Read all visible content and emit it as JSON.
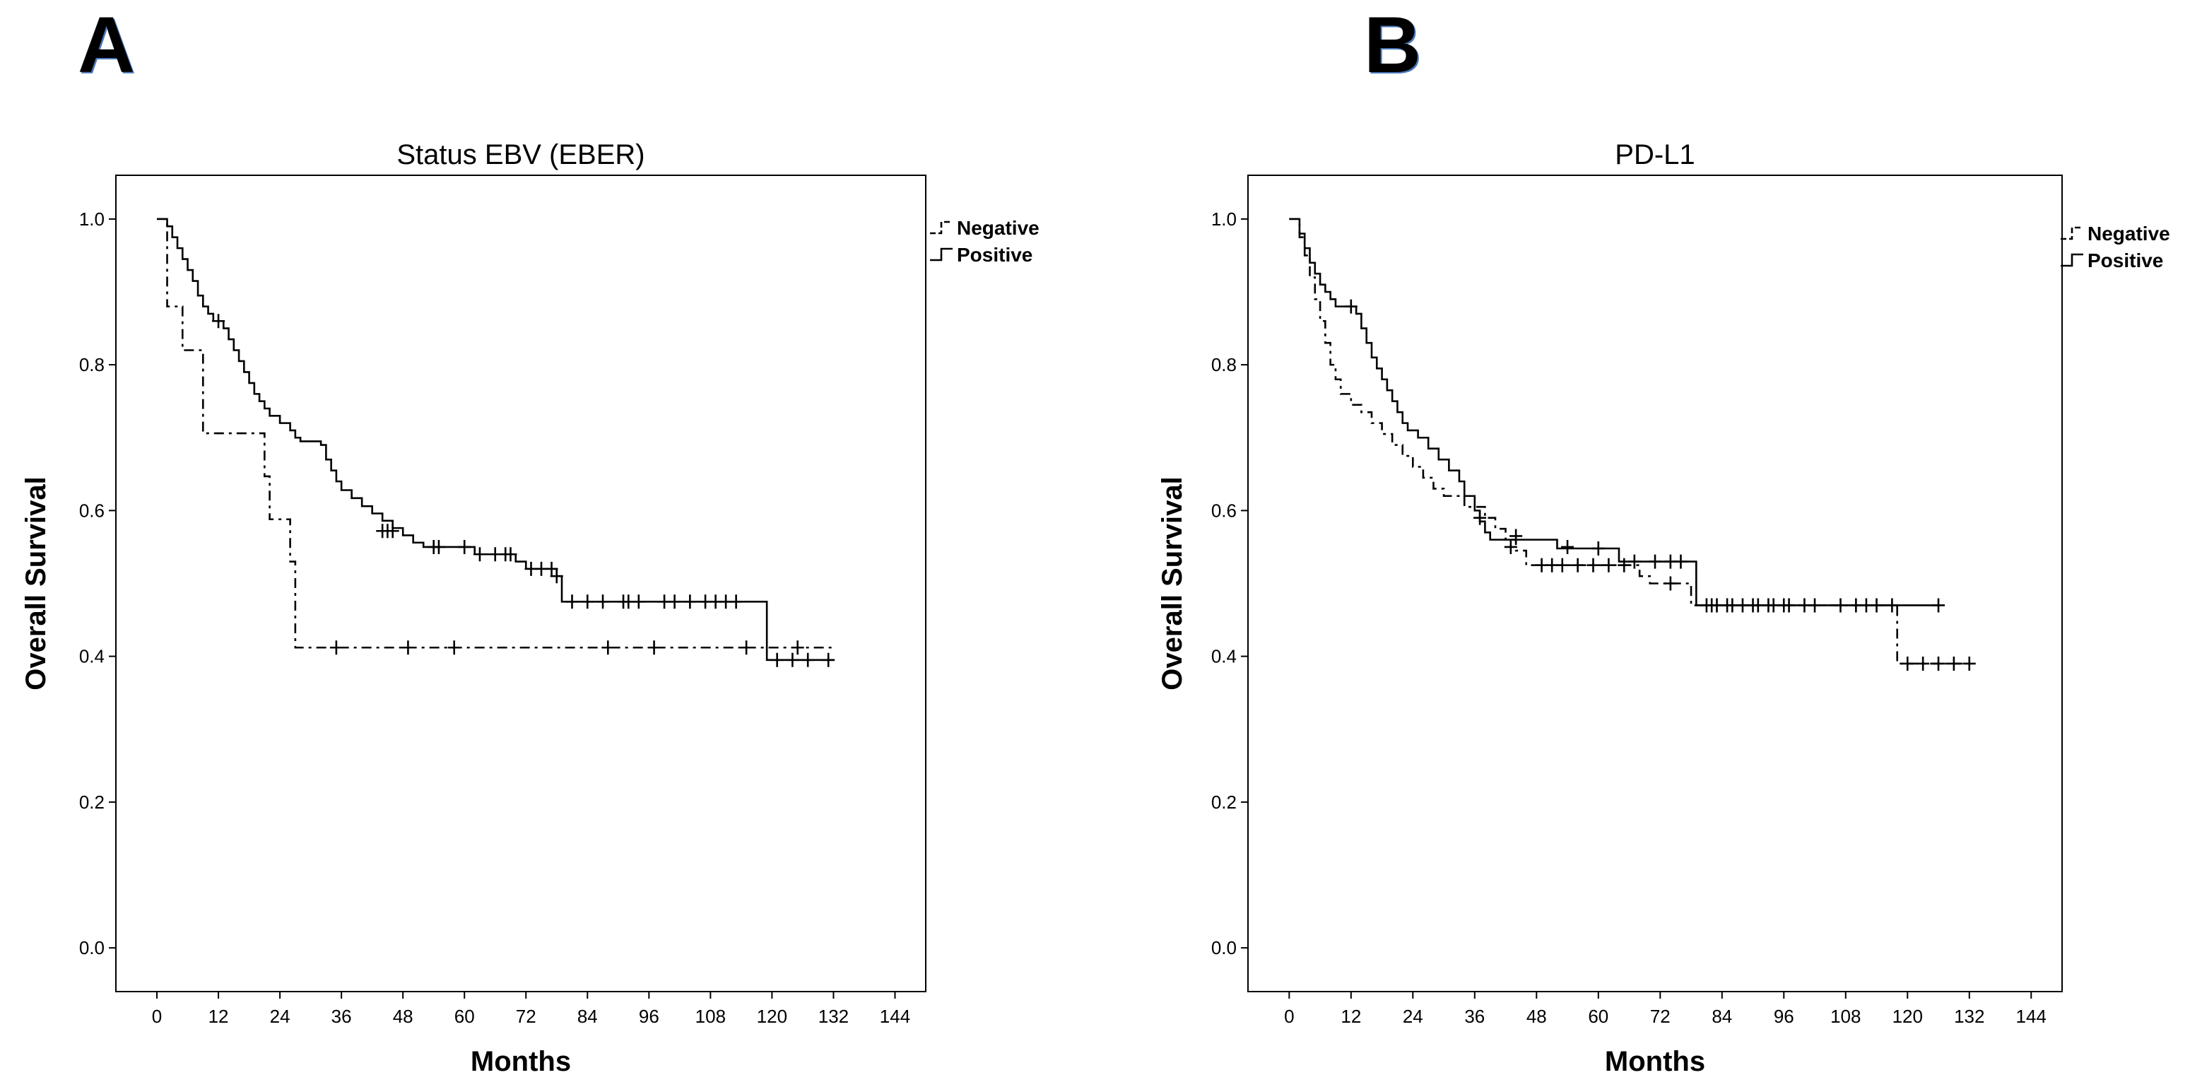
{
  "figure": {
    "panel_labels": [
      "A",
      "B"
    ]
  },
  "colors": {
    "line": "#000000",
    "panel_label_shadow": "#4a78b8"
  },
  "chart_data": [
    {
      "type": "line",
      "subtype": "kaplan-meier",
      "panel": "A",
      "title": "Status EBV (EBER)",
      "xlabel": "Months",
      "ylabel": "Overall Survival",
      "xlim": [
        -8,
        150
      ],
      "ylim": [
        -0.06,
        1.06
      ],
      "xticks": [
        0,
        12,
        24,
        36,
        48,
        60,
        72,
        84,
        96,
        108,
        120,
        132,
        144
      ],
      "yticks": [
        0.0,
        0.2,
        0.4,
        0.6,
        0.8,
        1.0
      ],
      "ytick_labels": [
        "0.0",
        "0.2",
        "0.4",
        "0.6",
        "0.8",
        "1.0"
      ],
      "grid": false,
      "legend_position": "outside-top-right",
      "series": [
        {
          "name": "Negative",
          "style": "dashed",
          "steps": [
            [
              0,
              1.0
            ],
            [
              2,
              0.88
            ],
            [
              5,
              0.82
            ],
            [
              9,
              0.706
            ],
            [
              21,
              0.647
            ],
            [
              22,
              0.588
            ],
            [
              26,
              0.53
            ],
            [
              27,
              0.412
            ],
            [
              124,
              0.412
            ],
            [
              132,
              0.412
            ]
          ],
          "censored": [
            [
              35,
              0.412
            ],
            [
              49,
              0.412
            ],
            [
              58,
              0.412
            ],
            [
              88,
              0.412
            ],
            [
              97,
              0.412
            ],
            [
              115,
              0.412
            ],
            [
              125,
              0.412
            ]
          ]
        },
        {
          "name": "Positive",
          "style": "solid",
          "steps": [
            [
              0,
              1.0
            ],
            [
              2,
              0.99
            ],
            [
              3,
              0.975
            ],
            [
              4,
              0.96
            ],
            [
              5,
              0.945
            ],
            [
              6,
              0.93
            ],
            [
              7,
              0.915
            ],
            [
              8,
              0.895
            ],
            [
              9,
              0.88
            ],
            [
              10,
              0.87
            ],
            [
              11,
              0.86
            ],
            [
              13,
              0.85
            ],
            [
              14,
              0.835
            ],
            [
              15,
              0.82
            ],
            [
              16,
              0.805
            ],
            [
              17,
              0.79
            ],
            [
              18,
              0.775
            ],
            [
              19,
              0.76
            ],
            [
              20,
              0.75
            ],
            [
              21,
              0.74
            ],
            [
              22,
              0.73
            ],
            [
              24,
              0.72
            ],
            [
              26,
              0.71
            ],
            [
              27,
              0.7
            ],
            [
              28,
              0.695
            ],
            [
              32,
              0.69
            ],
            [
              33,
              0.67
            ],
            [
              34,
              0.655
            ],
            [
              35,
              0.64
            ],
            [
              36,
              0.628
            ],
            [
              38,
              0.617
            ],
            [
              40,
              0.606
            ],
            [
              42,
              0.596
            ],
            [
              44,
              0.586
            ],
            [
              46,
              0.576
            ],
            [
              48,
              0.566
            ],
            [
              50,
              0.556
            ],
            [
              52,
              0.55
            ],
            [
              62,
              0.54
            ],
            [
              70,
              0.53
            ],
            [
              72,
              0.52
            ],
            [
              78,
              0.51
            ],
            [
              79,
              0.475
            ],
            [
              118,
              0.475
            ],
            [
              119,
              0.395
            ],
            [
              132,
              0.395
            ]
          ],
          "censored": [
            [
              12,
              0.86
            ],
            [
              44,
              0.572
            ],
            [
              45,
              0.572
            ],
            [
              46,
              0.572
            ],
            [
              54,
              0.55
            ],
            [
              55,
              0.55
            ],
            [
              60,
              0.55
            ],
            [
              63,
              0.54
            ],
            [
              66,
              0.54
            ],
            [
              68,
              0.54
            ],
            [
              69,
              0.54
            ],
            [
              73,
              0.52
            ],
            [
              75,
              0.52
            ],
            [
              77,
              0.52
            ],
            [
              78,
              0.51
            ],
            [
              81,
              0.475
            ],
            [
              84,
              0.475
            ],
            [
              87,
              0.475
            ],
            [
              91,
              0.475
            ],
            [
              92,
              0.475
            ],
            [
              94,
              0.475
            ],
            [
              99,
              0.475
            ],
            [
              101,
              0.475
            ],
            [
              104,
              0.475
            ],
            [
              107,
              0.475
            ],
            [
              109,
              0.475
            ],
            [
              111,
              0.475
            ],
            [
              113,
              0.475
            ],
            [
              121,
              0.395
            ],
            [
              124,
              0.395
            ],
            [
              127,
              0.395
            ],
            [
              131,
              0.395
            ]
          ]
        }
      ]
    },
    {
      "type": "line",
      "subtype": "kaplan-meier",
      "panel": "B",
      "title": "PD-L1",
      "xlabel": "Months",
      "ylabel": "Overall Survival",
      "xlim": [
        -8,
        150
      ],
      "ylim": [
        -0.06,
        1.06
      ],
      "xticks": [
        0,
        12,
        24,
        36,
        48,
        60,
        72,
        84,
        96,
        108,
        120,
        132,
        144
      ],
      "yticks": [
        0.0,
        0.2,
        0.4,
        0.6,
        0.8,
        1.0
      ],
      "ytick_labels": [
        "0.0",
        "0.2",
        "0.4",
        "0.6",
        "0.8",
        "1.0"
      ],
      "grid": false,
      "legend_position": "outside-top-right",
      "series": [
        {
          "name": "Negative",
          "style": "dashed",
          "steps": [
            [
              0,
              1.0
            ],
            [
              2,
              0.975
            ],
            [
              3,
              0.95
            ],
            [
              4,
              0.92
            ],
            [
              5,
              0.89
            ],
            [
              6,
              0.86
            ],
            [
              7,
              0.83
            ],
            [
              8,
              0.8
            ],
            [
              9,
              0.78
            ],
            [
              10,
              0.76
            ],
            [
              12,
              0.745
            ],
            [
              14,
              0.735
            ],
            [
              16,
              0.72
            ],
            [
              18,
              0.705
            ],
            [
              20,
              0.69
            ],
            [
              22,
              0.675
            ],
            [
              24,
              0.66
            ],
            [
              26,
              0.645
            ],
            [
              28,
              0.63
            ],
            [
              30,
              0.62
            ],
            [
              34,
              0.605
            ],
            [
              38,
              0.59
            ],
            [
              40,
              0.575
            ],
            [
              42,
              0.56
            ],
            [
              44,
              0.545
            ],
            [
              46,
              0.525
            ],
            [
              68,
              0.51
            ],
            [
              70,
              0.5
            ],
            [
              76,
              0.5
            ],
            [
              78,
              0.47
            ],
            [
              117,
              0.47
            ],
            [
              118,
              0.39
            ],
            [
              132,
              0.39
            ]
          ],
          "censored": [
            [
              37,
              0.59
            ],
            [
              43,
              0.55
            ],
            [
              49,
              0.525
            ],
            [
              51,
              0.525
            ],
            [
              53,
              0.525
            ],
            [
              56,
              0.525
            ],
            [
              59,
              0.525
            ],
            [
              62,
              0.525
            ],
            [
              65,
              0.525
            ],
            [
              74,
              0.5
            ],
            [
              81,
              0.47
            ],
            [
              83,
              0.47
            ],
            [
              85,
              0.47
            ],
            [
              88,
              0.47
            ],
            [
              91,
              0.47
            ],
            [
              94,
              0.47
            ],
            [
              96,
              0.47
            ],
            [
              120,
              0.39
            ],
            [
              123,
              0.39
            ],
            [
              126,
              0.39
            ],
            [
              129,
              0.39
            ],
            [
              132,
              0.39
            ]
          ]
        },
        {
          "name": "Positive",
          "style": "solid",
          "steps": [
            [
              0,
              1.0
            ],
            [
              2,
              0.98
            ],
            [
              3,
              0.96
            ],
            [
              4,
              0.94
            ],
            [
              5,
              0.925
            ],
            [
              6,
              0.91
            ],
            [
              7,
              0.9
            ],
            [
              8,
              0.89
            ],
            [
              9,
              0.88
            ],
            [
              13,
              0.87
            ],
            [
              14,
              0.85
            ],
            [
              15,
              0.83
            ],
            [
              16,
              0.81
            ],
            [
              17,
              0.795
            ],
            [
              18,
              0.78
            ],
            [
              19,
              0.765
            ],
            [
              20,
              0.75
            ],
            [
              21,
              0.735
            ],
            [
              22,
              0.72
            ],
            [
              23,
              0.71
            ],
            [
              25,
              0.7
            ],
            [
              27,
              0.685
            ],
            [
              29,
              0.67
            ],
            [
              31,
              0.655
            ],
            [
              33,
              0.64
            ],
            [
              34,
              0.62
            ],
            [
              36,
              0.6
            ],
            [
              37,
              0.585
            ],
            [
              38,
              0.57
            ],
            [
              39,
              0.56
            ],
            [
              52,
              0.548
            ],
            [
              64,
              0.53
            ],
            [
              79,
              0.47
            ],
            [
              126,
              0.47
            ]
          ],
          "censored": [
            [
              12,
              0.88
            ],
            [
              44,
              0.565
            ],
            [
              54,
              0.55
            ],
            [
              60,
              0.548
            ],
            [
              67,
              0.53
            ],
            [
              71,
              0.53
            ],
            [
              74,
              0.53
            ],
            [
              76,
              0.53
            ],
            [
              82,
              0.47
            ],
            [
              86,
              0.47
            ],
            [
              90,
              0.47
            ],
            [
              93,
              0.47
            ],
            [
              97,
              0.47
            ],
            [
              100,
              0.47
            ],
            [
              102,
              0.47
            ],
            [
              107,
              0.47
            ],
            [
              110,
              0.47
            ],
            [
              112,
              0.47
            ],
            [
              114,
              0.47
            ],
            [
              117,
              0.47
            ],
            [
              126,
              0.47
            ]
          ]
        }
      ]
    }
  ]
}
